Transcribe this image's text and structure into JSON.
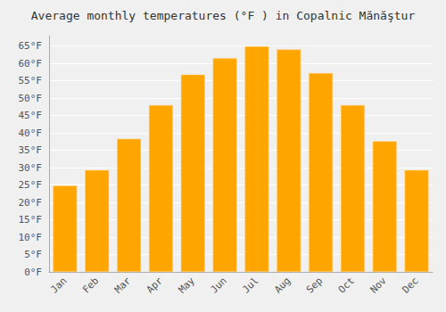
{
  "chart_data": {
    "type": "bar",
    "title": "Average monthly temperatures (°F ) in Copalnic Mănăştur",
    "categories": [
      "Jan",
      "Feb",
      "Mar",
      "Apr",
      "May",
      "Jun",
      "Jul",
      "Aug",
      "Sep",
      "Oct",
      "Nov",
      "Dec"
    ],
    "values": [
      24.8,
      29.3,
      38.3,
      48.0,
      56.8,
      61.5,
      64.9,
      64.0,
      57.2,
      48.0,
      37.6,
      29.3
    ],
    "color": "#FFA500",
    "ylim": [
      0,
      68
    ],
    "yticks": [
      {
        "value": 0,
        "label": "0°F"
      },
      {
        "value": 5,
        "label": "5°F"
      },
      {
        "value": 10,
        "label": "10°F"
      },
      {
        "value": 15,
        "label": "15°F"
      },
      {
        "value": 20,
        "label": "20°F"
      },
      {
        "value": 25,
        "label": "25°F"
      },
      {
        "value": 30,
        "label": "30°F"
      },
      {
        "value": 35,
        "label": "35°F"
      },
      {
        "value": 40,
        "label": "40°F"
      },
      {
        "value": 45,
        "label": "45°F"
      },
      {
        "value": 50,
        "label": "50°F"
      },
      {
        "value": 55,
        "label": "55°F"
      },
      {
        "value": 60,
        "label": "60°F"
      },
      {
        "value": 65,
        "label": "65°F"
      }
    ],
    "grid": true
  }
}
